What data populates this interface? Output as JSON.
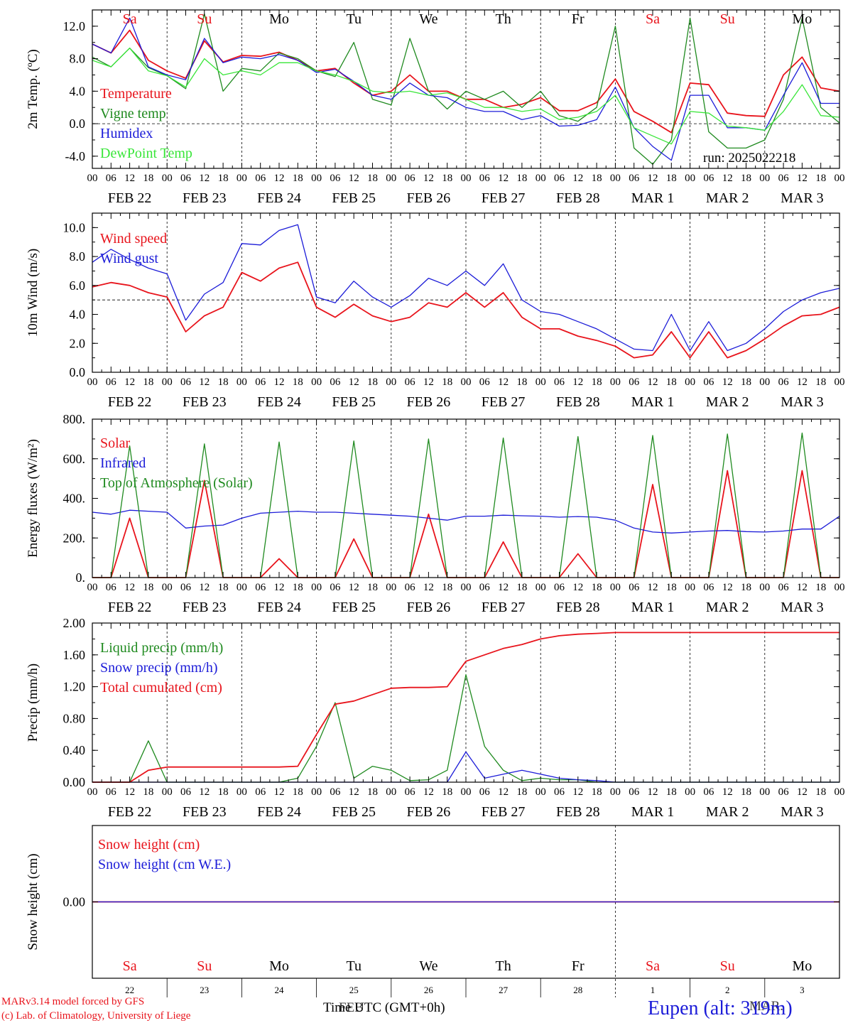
{
  "run_label": "run: 2025022218",
  "colors": {
    "red": "#e8141c",
    "green": "#1f8a1f",
    "blue": "#1c1cd8",
    "lime": "#39e639",
    "black": "#000000"
  },
  "hour_ticks": [
    "00",
    "06",
    "12",
    "18",
    "00",
    "06",
    "12",
    "18",
    "00",
    "06",
    "12",
    "18",
    "00",
    "06",
    "12",
    "18",
    "00",
    "06",
    "12",
    "18",
    "00",
    "06",
    "12",
    "18",
    "00",
    "06",
    "12",
    "18",
    "00",
    "06",
    "12",
    "18",
    "00",
    "06",
    "12",
    "18",
    "00",
    "06",
    "12",
    "18",
    "00"
  ],
  "date_labels": [
    "FEB 22",
    "FEB 23",
    "FEB 24",
    "FEB 25",
    "FEB 26",
    "FEB 27",
    "FEB 28",
    "MAR  1",
    "MAR  2",
    "MAR  3"
  ],
  "day_names": [
    {
      "label": "Sa",
      "weekend": true
    },
    {
      "label": "Su",
      "weekend": true
    },
    {
      "label": "Mo",
      "weekend": false
    },
    {
      "label": "Tu",
      "weekend": false
    },
    {
      "label": "We",
      "weekend": false
    },
    {
      "label": "Th",
      "weekend": false
    },
    {
      "label": "Fr",
      "weekend": false
    },
    {
      "label": "Sa",
      "weekend": true
    },
    {
      "label": "Su",
      "weekend": true
    },
    {
      "label": "Mo",
      "weekend": false
    }
  ],
  "bottom_day_numbers": [
    "22",
    "23",
    "24",
    "25",
    "26",
    "27",
    "28",
    "1",
    "2",
    "3"
  ],
  "bottom_month_label": "MAR.",
  "bottom_month_label_2": "FEB",
  "time_axis_label": "Time UTC (GMT+0h)",
  "footer": {
    "model": "MARv3.14 model forced by GFS",
    "lab": "(c) Lab. of Climatology, University of Liege",
    "station": "Eupen (alt: 319m)"
  },
  "chart_data": [
    {
      "type": "line",
      "ylabel": "2m Temp. (ºC)",
      "ylim": [
        -5.5,
        14
      ],
      "yticks": [
        "12.0",
        "8.0",
        "4.0",
        "0.0",
        "-4.0"
      ],
      "ytick_values": [
        12,
        8,
        4,
        0,
        -4
      ],
      "ref_line": 0,
      "x_hours": [
        0,
        6,
        12,
        18,
        24,
        30,
        36,
        42,
        48,
        54,
        60,
        66,
        72,
        78,
        84,
        90,
        96,
        102,
        108,
        114,
        120,
        126,
        132,
        138,
        144,
        150,
        156,
        162,
        168,
        174,
        180,
        186,
        192,
        198,
        204,
        210,
        216,
        222,
        228,
        234,
        240
      ],
      "series": [
        {
          "name": "Temperature",
          "color": "red",
          "values": [
            9.8,
            8.7,
            11.5,
            7.8,
            6.5,
            5.6,
            10.2,
            7.6,
            8.4,
            8.3,
            8.8,
            7.8,
            6.5,
            6.8,
            5.0,
            3.5,
            4.0,
            6.0,
            4.0,
            4.0,
            3.0,
            3.0,
            2.0,
            2.4,
            3.2,
            1.6,
            1.6,
            2.6,
            5.5,
            1.5,
            0.3,
            -1.1,
            5.0,
            4.8,
            1.3,
            1.0,
            0.9,
            6.0,
            8.2,
            4.4,
            4.0
          ]
        },
        {
          "name": "Vigne temp",
          "color": "green",
          "values": [
            8.2,
            7.0,
            9.3,
            6.9,
            5.9,
            4.3,
            13.5,
            4.0,
            6.8,
            6.5,
            8.7,
            8.0,
            6.5,
            5.8,
            10.0,
            3.0,
            2.3,
            10.5,
            4.0,
            1.8,
            4.0,
            3.0,
            4.0,
            2.0,
            4.0,
            1.0,
            0.3,
            2.0,
            12.0,
            -3.0,
            -5.0,
            -2.0,
            13.0,
            -1.0,
            -3.0,
            -3.0,
            -2.0,
            3.0,
            13.0,
            2.0,
            0.1
          ]
        },
        {
          "name": "Humidex",
          "color": "blue",
          "values": [
            9.8,
            8.7,
            13.0,
            7.0,
            6.0,
            5.4,
            10.5,
            7.5,
            8.2,
            8.0,
            8.5,
            7.8,
            6.3,
            6.7,
            5.2,
            3.5,
            3.0,
            5.0,
            3.5,
            3.2,
            2.0,
            1.5,
            1.5,
            0.5,
            1.0,
            -0.3,
            -0.2,
            0.5,
            4.5,
            -0.5,
            -2.8,
            -4.5,
            3.5,
            3.5,
            -0.5,
            -0.5,
            -0.8,
            3.5,
            7.5,
            2.5,
            2.5
          ]
        },
        {
          "name": "DewPoint Temp",
          "color": "lime",
          "values": [
            7.8,
            7.0,
            9.3,
            6.5,
            5.9,
            4.5,
            8.0,
            6.0,
            6.5,
            6.0,
            7.5,
            7.5,
            6.5,
            6.0,
            5.2,
            4.0,
            3.8,
            4.0,
            3.5,
            3.8,
            3.0,
            2.0,
            2.0,
            1.5,
            1.8,
            0.5,
            0.8,
            1.5,
            3.5,
            -0.5,
            -1.5,
            -2.5,
            1.5,
            1.3,
            -0.3,
            -0.5,
            -0.8,
            1.5,
            4.8,
            1.0,
            0.8
          ]
        }
      ]
    },
    {
      "type": "line",
      "ylabel": "10m Wind (m/s)",
      "ylim": [
        0,
        11
      ],
      "yticks": [
        "10.0",
        "8.0",
        "6.0",
        "4.0",
        "2.0",
        "0.0"
      ],
      "ytick_values": [
        10,
        8,
        6,
        4,
        2,
        0
      ],
      "ref_line": 5,
      "x_hours": [
        0,
        6,
        12,
        18,
        24,
        30,
        36,
        42,
        48,
        54,
        60,
        66,
        72,
        78,
        84,
        90,
        96,
        102,
        108,
        114,
        120,
        126,
        132,
        138,
        144,
        150,
        156,
        162,
        168,
        174,
        180,
        186,
        192,
        198,
        204,
        210,
        216,
        222,
        228,
        234,
        240
      ],
      "series": [
        {
          "name": "Wind speed",
          "color": "red",
          "values": [
            5.9,
            6.2,
            6.0,
            5.5,
            5.2,
            2.8,
            3.9,
            4.5,
            6.9,
            6.3,
            7.2,
            7.6,
            4.5,
            3.8,
            4.7,
            3.9,
            3.5,
            3.8,
            4.8,
            4.5,
            5.5,
            4.5,
            5.5,
            3.8,
            3.0,
            3.0,
            2.5,
            2.2,
            1.8,
            1.0,
            1.2,
            2.8,
            1.0,
            2.8,
            1.0,
            1.5,
            2.3,
            3.2,
            3.9,
            4.0,
            4.5
          ]
        },
        {
          "name": "Wind gust",
          "color": "blue",
          "values": [
            7.6,
            8.5,
            7.8,
            7.2,
            6.8,
            3.6,
            5.4,
            6.2,
            8.9,
            8.8,
            9.8,
            10.2,
            5.2,
            4.8,
            6.3,
            5.2,
            4.5,
            5.3,
            6.5,
            6.0,
            7.0,
            6.0,
            7.5,
            5.0,
            4.2,
            4.0,
            3.5,
            3.0,
            2.3,
            1.6,
            1.5,
            4.0,
            1.5,
            3.5,
            1.5,
            2.0,
            3.0,
            4.2,
            5.0,
            5.5,
            5.8
          ]
        }
      ]
    },
    {
      "type": "line",
      "ylabel": "Energy fluxes (W/m²)",
      "ylim": [
        0,
        800
      ],
      "yticks": [
        "800.",
        "600.",
        "400.",
        "200.",
        "0."
      ],
      "ytick_values": [
        800,
        600,
        400,
        200,
        0
      ],
      "x_hours": [
        0,
        6,
        12,
        18,
        24,
        30,
        36,
        42,
        48,
        54,
        60,
        66,
        72,
        78,
        84,
        90,
        96,
        102,
        108,
        114,
        120,
        126,
        132,
        138,
        144,
        150,
        156,
        162,
        168,
        174,
        180,
        186,
        192,
        198,
        204,
        210,
        216,
        222,
        228,
        234,
        240
      ],
      "series": [
        {
          "name": "Solar",
          "color": "red",
          "values": [
            0,
            0,
            300,
            0,
            0,
            0,
            490,
            0,
            0,
            0,
            95,
            0,
            0,
            0,
            195,
            0,
            0,
            0,
            320,
            0,
            0,
            0,
            180,
            0,
            0,
            0,
            120,
            0,
            0,
            0,
            470,
            0,
            0,
            0,
            540,
            0,
            0,
            0,
            540,
            0,
            0
          ]
        },
        {
          "name": "Infrared",
          "color": "blue",
          "values": [
            330,
            320,
            340,
            335,
            330,
            250,
            260,
            265,
            300,
            325,
            330,
            335,
            330,
            330,
            325,
            320,
            315,
            310,
            300,
            290,
            310,
            310,
            315,
            312,
            310,
            305,
            308,
            305,
            290,
            250,
            230,
            225,
            230,
            235,
            238,
            232,
            230,
            235,
            245,
            245,
            310
          ]
        },
        {
          "name": "Top of Atmosphere (Solar)",
          "color": "green",
          "values": [
            0,
            0,
            665,
            0,
            0,
            0,
            675,
            0,
            0,
            0,
            685,
            0,
            0,
            0,
            690,
            0,
            0,
            0,
            700,
            0,
            0,
            0,
            705,
            0,
            0,
            0,
            712,
            0,
            0,
            0,
            718,
            0,
            0,
            0,
            725,
            0,
            0,
            0,
            730,
            0,
            0
          ]
        }
      ]
    },
    {
      "type": "line",
      "ylabel": "Precip (mm/h)",
      "ylim": [
        0,
        2
      ],
      "yticks": [
        "2.00",
        "1.60",
        "1.20",
        "0.80",
        "0.40",
        "0.00"
      ],
      "ytick_values": [
        2.0,
        1.6,
        1.2,
        0.8,
        0.4,
        0.0
      ],
      "x_hours": [
        0,
        6,
        12,
        18,
        24,
        30,
        36,
        42,
        48,
        54,
        60,
        66,
        72,
        78,
        84,
        90,
        96,
        102,
        108,
        114,
        120,
        126,
        132,
        138,
        144,
        150,
        156,
        162,
        168,
        174,
        180,
        186,
        192,
        198,
        204,
        210,
        216,
        222,
        228,
        234,
        240
      ],
      "series": [
        {
          "name": "Liquid precip (mm/h)",
          "color": "green",
          "values": [
            0,
            0,
            0,
            0.52,
            0,
            0,
            0,
            0,
            0,
            0,
            0,
            0.05,
            0.45,
            1.0,
            0.05,
            0.2,
            0.15,
            0.02,
            0.03,
            0.15,
            1.35,
            0.45,
            0.15,
            0.02,
            0.05,
            0.03,
            0.03,
            0,
            0,
            0,
            0,
            0,
            0,
            0,
            0,
            0,
            0,
            0,
            0,
            0,
            0
          ]
        },
        {
          "name": "Snow precip (mm/h)",
          "color": "blue",
          "values": [
            0,
            0,
            0,
            0,
            0,
            0,
            0,
            0,
            0,
            0,
            0,
            0,
            0,
            0,
            0,
            0,
            0,
            0,
            0,
            0,
            0.38,
            0.05,
            0.1,
            0.15,
            0.1,
            0.05,
            0.03,
            0.02,
            0,
            0,
            0,
            0,
            0,
            0,
            0,
            0,
            0,
            0,
            0,
            0,
            0
          ]
        },
        {
          "name": "Total cumulated (cm)",
          "color": "red",
          "values": [
            0,
            0,
            0,
            0.15,
            0.19,
            0.19,
            0.19,
            0.19,
            0.19,
            0.19,
            0.19,
            0.2,
            0.6,
            0.98,
            1.02,
            1.1,
            1.18,
            1.19,
            1.19,
            1.2,
            1.52,
            1.6,
            1.68,
            1.73,
            1.8,
            1.84,
            1.86,
            1.87,
            1.88,
            1.88,
            1.88,
            1.88,
            1.88,
            1.88,
            1.88,
            1.88,
            1.88,
            1.88,
            1.88,
            1.88,
            1.88
          ]
        }
      ]
    },
    {
      "type": "line",
      "ylabel": "Snow height (cm)",
      "ylim": [
        -1,
        1
      ],
      "yticks": [
        "0.00"
      ],
      "ytick_values": [
        0
      ],
      "x_hours": [
        0,
        240
      ],
      "series": [
        {
          "name": "Snow height (cm)",
          "color": "red",
          "values": [
            0,
            0
          ]
        },
        {
          "name": "Snow height (cm W.E.)",
          "color": "blue",
          "values": [
            0,
            0
          ]
        }
      ]
    }
  ]
}
